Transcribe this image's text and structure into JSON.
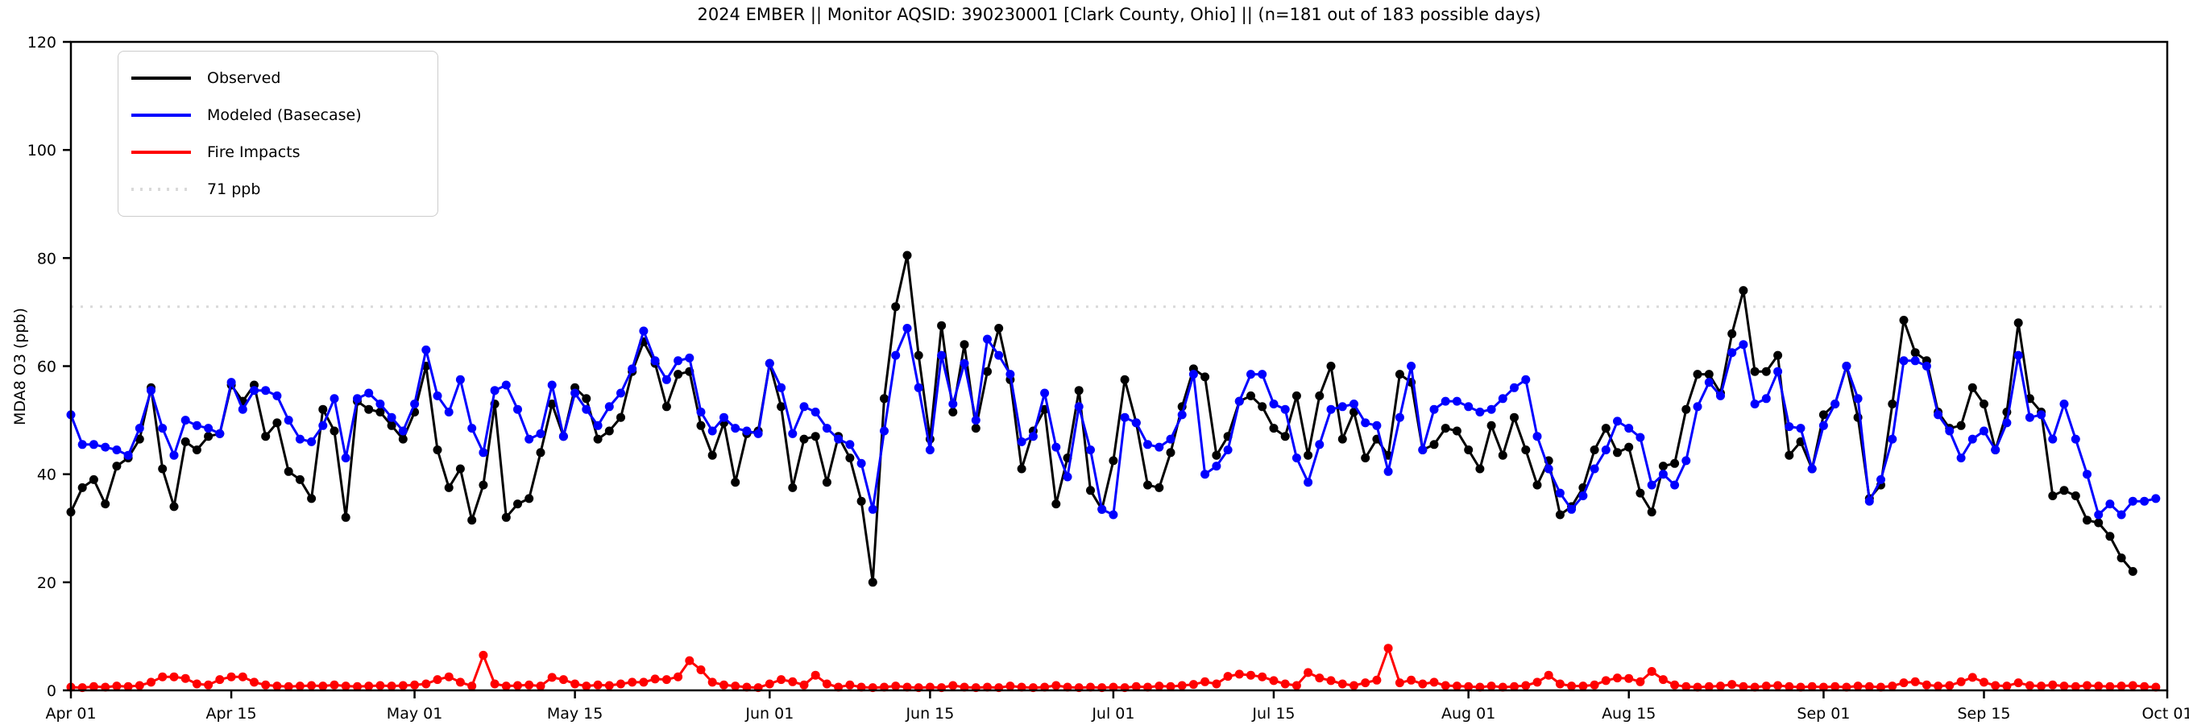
{
  "chart_data": {
    "type": "line",
    "title": "2024 EMBER || Monitor AQSID: 390230001 [Clark County, Ohio] || (n=181 out of 183 possible days)",
    "ylabel": "MDA8 O3 (ppb)",
    "xlabel": "",
    "ylim": [
      0,
      120
    ],
    "yticks": [
      0,
      20,
      40,
      60,
      80,
      100,
      120
    ],
    "xtick_days": [
      0,
      14,
      30,
      44,
      61,
      75,
      91,
      105,
      122,
      136,
      153,
      167,
      183
    ],
    "xtick_labels": [
      "Apr 01",
      "Apr 15",
      "May 01",
      "May 15",
      "Jun 01",
      "Jun 15",
      "Jul 01",
      "Jul 15",
      "Aug 01",
      "Aug 15",
      "Sep 01",
      "Sep 15",
      "Oct 01"
    ],
    "x_start_date": "2024-04-01",
    "n_days": 183,
    "reference_line": {
      "value": 71,
      "label": "71 ppb",
      "color": "#d9d9d9",
      "style": "dotted"
    },
    "grid": false,
    "legend_position": "upper-left",
    "series": [
      {
        "name": "Observed",
        "color": "#000000",
        "values": [
          33,
          37.5,
          39,
          34.5,
          41.5,
          43,
          46.5,
          56,
          41,
          34,
          46,
          44.5,
          47,
          47.5,
          56.5,
          53.5,
          56.5,
          47,
          49.5,
          40.5,
          39,
          35.5,
          52,
          48,
          32,
          53.5,
          52,
          51.5,
          49,
          46.5,
          51.5,
          60,
          44.5,
          37.5,
          41,
          31.5,
          38,
          53,
          32,
          34.5,
          35.5,
          44,
          53,
          47,
          56,
          54,
          46.5,
          48,
          50.5,
          59,
          64.5,
          60.5,
          52.5,
          58.5,
          59,
          49,
          43.5,
          49.5,
          38.5,
          47.5,
          48,
          60.5,
          52.5,
          37.5,
          46.5,
          47,
          38.5,
          47,
          43,
          35,
          20,
          54,
          71,
          80.5,
          62,
          46.5,
          67.5,
          51.5,
          64,
          48.5,
          59,
          67,
          57.5,
          41,
          48,
          52,
          34.5,
          43,
          55.5,
          37,
          33.5,
          42.5,
          57.5,
          49.5,
          38,
          37.5,
          44,
          52.5,
          59.5,
          58,
          43.5,
          47,
          53.5,
          54.5,
          52.5,
          48.5,
          47,
          54.5,
          43.5,
          54.5,
          60,
          46.5,
          51.5,
          43,
          46.5,
          43.5,
          58.5,
          57,
          44.5,
          45.5,
          48.5,
          48,
          44.5,
          41,
          49,
          43.5,
          50.5,
          44.5,
          38,
          42.5,
          32.5,
          34,
          37.5,
          44.5,
          48.5,
          44,
          45,
          36.5,
          33,
          41.5,
          42,
          52,
          58.5,
          58.5,
          55,
          66,
          74,
          59,
          59,
          62,
          43.5,
          46,
          41,
          51,
          53,
          60,
          50.5,
          35.5,
          38,
          53,
          68.5,
          62.5,
          61,
          51.5,
          48.5,
          49,
          56,
          53,
          44.5,
          51.5,
          68,
          54,
          51.5,
          36,
          37,
          36,
          31.5,
          31,
          28.5,
          24.5,
          22,
          null,
          null
        ]
      },
      {
        "name": "Modeled (Basecase)",
        "color": "#0000ff",
        "values": [
          51,
          45.5,
          45.5,
          45,
          44.5,
          43.5,
          48.5,
          55.5,
          48.5,
          43.5,
          50,
          49,
          48.5,
          47.5,
          57,
          52,
          55.5,
          55.5,
          54.5,
          50,
          46.5,
          46,
          49,
          54,
          43,
          54,
          55,
          53,
          50.5,
          48,
          53,
          63,
          54.5,
          51.5,
          57.5,
          48.5,
          44,
          55.5,
          56.5,
          52,
          46.5,
          47.5,
          56.5,
          47,
          55,
          52,
          49,
          52.5,
          55,
          59.5,
          66.5,
          61,
          57.5,
          61,
          61.5,
          51.5,
          48,
          50.5,
          48.5,
          48,
          47.5,
          60.5,
          56,
          47.5,
          52.5,
          51.5,
          48.5,
          46.5,
          45.5,
          42,
          33.5,
          48,
          62,
          67,
          56,
          44.5,
          62,
          53,
          60.5,
          50,
          65,
          62,
          58.5,
          46,
          47,
          55,
          45,
          39.5,
          52.5,
          44.5,
          33.5,
          32.5,
          50.5,
          49.5,
          45.5,
          45,
          46.5,
          51,
          58.5,
          40,
          41.5,
          44.5,
          53.5,
          58.5,
          58.5,
          53,
          52,
          43,
          38.5,
          45.5,
          52,
          52.5,
          53,
          49.5,
          49,
          40.5,
          50.5,
          60,
          44.5,
          52,
          53.5,
          53.5,
          52.5,
          51.5,
          52,
          54,
          56,
          57.5,
          47,
          41,
          36.5,
          33.5,
          36,
          41,
          44.5,
          49.8,
          48.5,
          46.8,
          38,
          40,
          38,
          42.5,
          52.5,
          57,
          54.5,
          62.5,
          64,
          53,
          54,
          59,
          48.8,
          48.5,
          41,
          49,
          53,
          60,
          54,
          35,
          39,
          46.5,
          61,
          61,
          60,
          51,
          48,
          43,
          46.5,
          48,
          44.5,
          49.5,
          62,
          50.5,
          51,
          46.5,
          53,
          46.5,
          40,
          32.5,
          34.5,
          32.5,
          35,
          35,
          35.5
        ]
      },
      {
        "name": "Fire Impacts",
        "color": "#ff0000",
        "values": [
          0.6,
          0.5,
          0.7,
          0.6,
          0.8,
          0.7,
          0.9,
          1.5,
          2.5,
          2.5,
          2.2,
          1.2,
          1.0,
          2.0,
          2.5,
          2.5,
          1.5,
          1.0,
          0.8,
          0.7,
          0.8,
          0.9,
          0.8,
          1.0,
          0.8,
          0.7,
          0.8,
          0.9,
          0.8,
          0.9,
          1.0,
          1.2,
          2.0,
          2.5,
          1.5,
          0.8,
          6.5,
          1.2,
          0.8,
          0.9,
          1.0,
          0.8,
          2.4,
          2.0,
          1.2,
          0.8,
          1.0,
          0.9,
          1.2,
          1.5,
          1.5,
          2.1,
          2.0,
          2.5,
          5.5,
          3.8,
          1.5,
          1.0,
          0.8,
          0.6,
          0.5,
          1.2,
          2.0,
          1.6,
          1.0,
          2.8,
          1.2,
          0.6,
          1.0,
          0.6,
          0.5,
          0.6,
          0.8,
          0.6,
          0.5,
          0.6,
          0.5,
          0.9,
          0.6,
          0.5,
          0.6,
          0.5,
          0.8,
          0.6,
          0.5,
          0.6,
          0.9,
          0.6,
          0.5,
          0.6,
          0.5,
          0.6,
          0.5,
          0.7,
          0.6,
          0.8,
          0.7,
          0.9,
          1.1,
          1.6,
          1.2,
          2.6,
          3.0,
          2.8,
          2.5,
          1.8,
          1.2,
          0.9,
          3.3,
          2.3,
          1.8,
          1.2,
          0.9,
          1.4,
          1.9,
          7.8,
          1.4,
          1.9,
          1.2,
          1.5,
          0.9,
          0.8,
          0.7,
          0.6,
          0.8,
          0.6,
          0.7,
          0.9,
          1.5,
          2.8,
          1.2,
          0.8,
          0.8,
          1.0,
          1.8,
          2.3,
          2.2,
          1.6,
          3.5,
          2.0,
          1.0,
          0.7,
          0.6,
          0.7,
          0.8,
          1.1,
          0.7,
          0.6,
          0.8,
          0.9,
          0.7,
          0.6,
          0.7,
          0.6,
          0.7,
          0.6,
          0.8,
          0.7,
          0.6,
          0.8,
          1.4,
          1.6,
          1.0,
          0.8,
          0.9,
          1.6,
          2.4,
          1.5,
          0.9,
          0.8,
          1.4,
          0.9,
          0.8,
          1.0,
          0.8,
          0.7,
          0.9,
          0.8,
          0.7,
          0.8,
          0.9,
          0.7,
          0.6
        ]
      }
    ]
  },
  "legend": {
    "items": [
      {
        "label": "Observed"
      },
      {
        "label": "Modeled (Basecase)"
      },
      {
        "label": "Fire Impacts"
      },
      {
        "label": "71 ppb"
      }
    ]
  },
  "layout_colors": {
    "axes": "#000000",
    "background": "#ffffff",
    "legend_border": "#cccccc"
  }
}
